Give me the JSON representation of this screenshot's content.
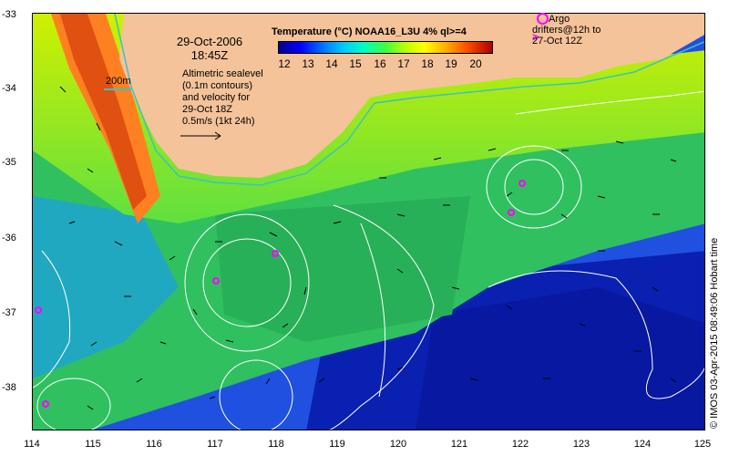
{
  "date": "29-Oct-2006",
  "time": "18:45Z",
  "colorbar": {
    "title": "Temperature (°C) NOAA16_L3U 4% ql>=4",
    "ticks": [
      "12",
      "13",
      "14",
      "15",
      "16",
      "17",
      "18",
      "19",
      "20"
    ]
  },
  "argo": {
    "line1": "Argo",
    "line2": "drifters@12h to",
    "line3": "27-Oct 12Z",
    "color": "#ff00ff"
  },
  "info": {
    "line1": "Altimetric sealevel",
    "line2": "(0.1m contours)",
    "line3": "and velocity for",
    "line4": "29-Oct 18Z",
    "line5": "0.5m/s (1kt 24h)"
  },
  "scale_label": "200m",
  "credit": "© IMOS 03-Apr-2015 08:49:06 Hobart time",
  "lat_labels": [
    "-33",
    "-34",
    "-35",
    "-36",
    "-37",
    "-38"
  ],
  "lon_labels": [
    "114",
    "115",
    "116",
    "117",
    "118",
    "119",
    "120",
    "121",
    "122",
    "123",
    "124",
    "125"
  ],
  "colors": {
    "land": "#f4c39a",
    "isobath": "#40c0c0",
    "contour": "#ffffff",
    "deep": "#1030c0"
  }
}
